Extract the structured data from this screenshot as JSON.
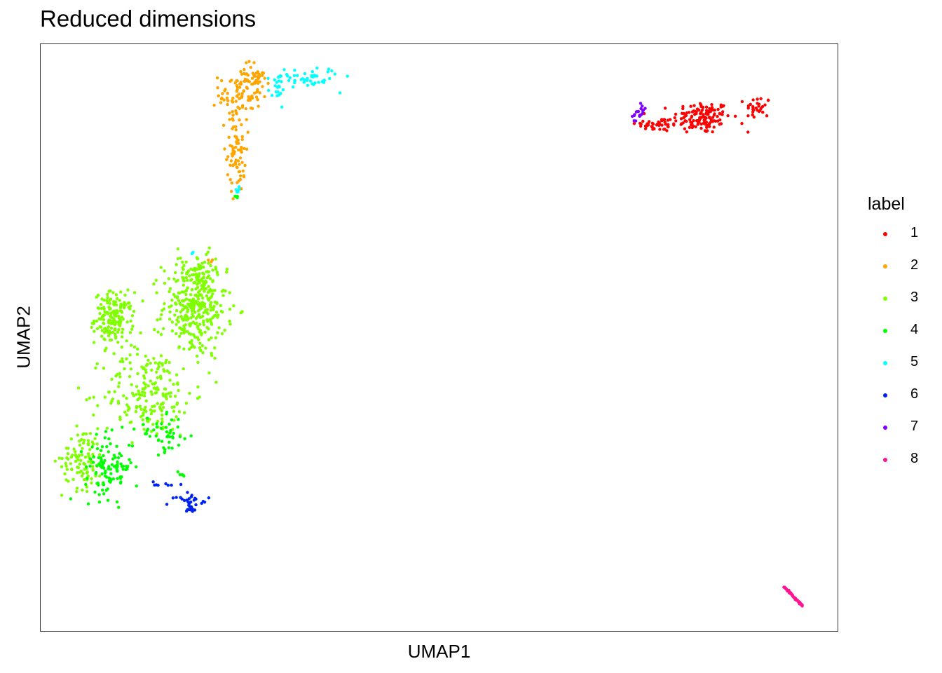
{
  "chart_data": {
    "type": "scatter",
    "title": "Reduced dimensions",
    "xlabel": "UMAP1",
    "ylabel": "UMAP2",
    "xlim": [
      0,
      100
    ],
    "ylim": [
      0,
      100
    ],
    "grid": false,
    "axis_ticks": false,
    "legend": {
      "title": "label",
      "placement": "right"
    },
    "series": [
      {
        "name": "1",
        "color": "#ff0000",
        "clusters": [
          {
            "cx": 83.0,
            "cy": 87.5,
            "sx": 1.8,
            "sy": 1.4,
            "n": 130
          },
          {
            "cx": 77.5,
            "cy": 86.3,
            "sx": 1.4,
            "sy": 0.6,
            "n": 45
          },
          {
            "cx": 90.0,
            "cy": 89.2,
            "sx": 0.8,
            "sy": 1.0,
            "n": 30
          }
        ]
      },
      {
        "name": "2",
        "color": "#ffa500",
        "clusters": [
          {
            "cx": 25.0,
            "cy": 91.5,
            "sx": 1.3,
            "sy": 2.3,
            "n": 80
          },
          {
            "cx": 24.6,
            "cy": 82.0,
            "sx": 0.6,
            "sy": 3.6,
            "n": 75
          },
          {
            "cx": 26.5,
            "cy": 94.0,
            "sx": 1.1,
            "sy": 0.8,
            "n": 40
          },
          {
            "cx": 21.4,
            "cy": 63.0,
            "sx": 0.3,
            "sy": 0.3,
            "n": 3
          }
        ]
      },
      {
        "name": "3",
        "color": "#7fff00",
        "clusters": [
          {
            "cx": 9.2,
            "cy": 53.3,
            "sx": 1.2,
            "sy": 2.2,
            "n": 170
          },
          {
            "cx": 19.3,
            "cy": 55.0,
            "sx": 2.0,
            "sy": 4.2,
            "n": 320
          },
          {
            "cx": 13.5,
            "cy": 40.5,
            "sx": 2.8,
            "sy": 3.8,
            "n": 200
          },
          {
            "cx": 5.3,
            "cy": 29.3,
            "sx": 1.3,
            "sy": 2.6,
            "n": 100
          },
          {
            "cx": 19.8,
            "cy": 60.3,
            "sx": 1.1,
            "sy": 2.0,
            "n": 60
          }
        ]
      },
      {
        "name": "4",
        "color": "#00ff00",
        "clusters": [
          {
            "cx": 8.6,
            "cy": 28.0,
            "sx": 1.5,
            "sy": 2.6,
            "n": 110
          },
          {
            "cx": 15.5,
            "cy": 33.5,
            "sx": 1.7,
            "sy": 1.5,
            "n": 45
          },
          {
            "cx": 17.6,
            "cy": 26.5,
            "sx": 0.3,
            "sy": 0.4,
            "n": 5
          },
          {
            "cx": 24.5,
            "cy": 73.8,
            "sx": 0.3,
            "sy": 0.5,
            "n": 4
          }
        ]
      },
      {
        "name": "5",
        "color": "#00ffff",
        "clusters": [
          {
            "cx": 33.0,
            "cy": 94.3,
            "sx": 2.2,
            "sy": 0.9,
            "n": 55
          },
          {
            "cx": 29.8,
            "cy": 92.0,
            "sx": 0.5,
            "sy": 1.2,
            "n": 15
          },
          {
            "cx": 24.8,
            "cy": 75.0,
            "sx": 0.2,
            "sy": 0.6,
            "n": 5
          },
          {
            "cx": 19.0,
            "cy": 64.0,
            "sx": 0.2,
            "sy": 0.2,
            "n": 2
          }
        ]
      },
      {
        "name": "6",
        "color": "#0022ee",
        "clusters": [
          {
            "cx": 18.8,
            "cy": 22.5,
            "sx": 1.0,
            "sy": 0.5,
            "n": 20
          },
          {
            "cx": 18.9,
            "cy": 21.3,
            "sx": 0.3,
            "sy": 0.6,
            "n": 15
          },
          {
            "cx": 15.3,
            "cy": 25.0,
            "sx": 0.8,
            "sy": 0.3,
            "n": 8
          }
        ]
      },
      {
        "name": "7",
        "color": "#7f00ff",
        "clusters": [
          {
            "cx": 75.0,
            "cy": 88.0,
            "sx": 0.5,
            "sy": 0.8,
            "n": 20
          }
        ]
      },
      {
        "name": "8",
        "color": "#ff1493",
        "line": {
          "x1": 93.3,
          "y1": 7.5,
          "x2": 95.6,
          "y2": 4.3,
          "n": 55
        }
      }
    ]
  }
}
